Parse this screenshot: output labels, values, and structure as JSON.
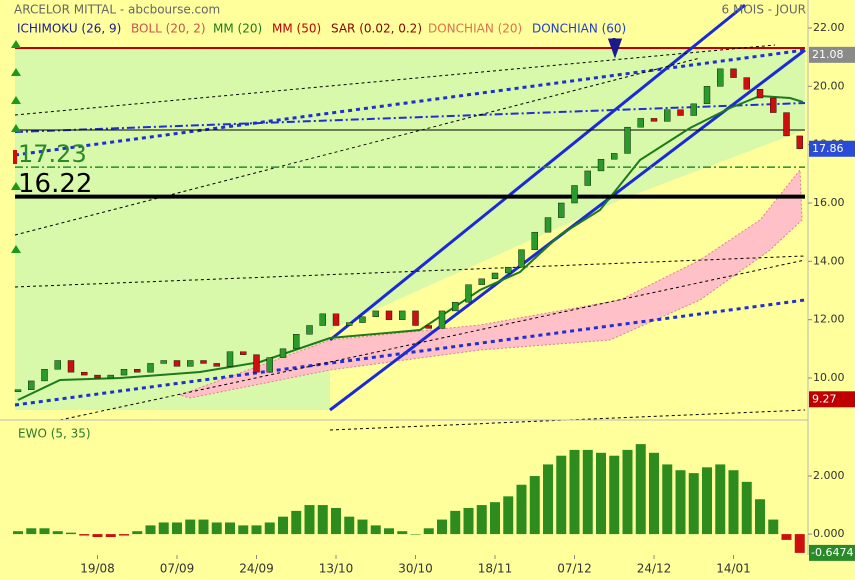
{
  "chart_data": [
    {
      "type": "candlestick",
      "title": "ARCELOR MITTAL - abcbourse.com",
      "period": "6 MOIS - JOUR",
      "indicators": [
        {
          "name": "ICHIMOKU (26, 9)",
          "color": "#1a1a8c"
        },
        {
          "name": "BOLL (20, 2)",
          "color": "#d05050"
        },
        {
          "name": "MM (20)",
          "color": "#1e7a1e"
        },
        {
          "name": "MM (50)",
          "color": "#c00000"
        },
        {
          "name": "SAR (0.02, 0.2)",
          "color": "#8b0000"
        },
        {
          "name": "DONCHIAN (20)",
          "color": "#e07050"
        },
        {
          "name": "DONCHIAN (60)",
          "color": "#2040d0"
        }
      ],
      "categories": [
        null,
        null,
        null,
        null,
        null,
        null,
        "19/08",
        null,
        null,
        null,
        null,
        null,
        "07/09",
        null,
        null,
        null,
        null,
        null,
        "24/09",
        null,
        null,
        null,
        null,
        null,
        "13/10",
        null,
        null,
        null,
        null,
        null,
        "30/10",
        null,
        null,
        null,
        null,
        null,
        "18/11",
        null,
        null,
        null,
        null,
        null,
        "07/12",
        null,
        null,
        null,
        null,
        null,
        "24/12",
        null,
        null,
        null,
        null,
        null,
        "14/01",
        null,
        null,
        null,
        null,
        null
      ],
      "values": [
        9.6,
        9.9,
        10.3,
        10.6,
        10.2,
        10.1,
        10.0,
        10.1,
        10.3,
        10.2,
        10.5,
        10.6,
        10.4,
        10.6,
        10.5,
        10.4,
        10.9,
        10.8,
        10.2,
        10.7,
        11.0,
        11.5,
        11.8,
        12.2,
        11.8,
        11.9,
        12.1,
        12.3,
        12.0,
        12.3,
        11.8,
        11.7,
        12.3,
        12.6,
        13.2,
        13.4,
        13.6,
        13.8,
        14.4,
        15.0,
        15.5,
        16.0,
        16.6,
        17.1,
        17.5,
        17.7,
        18.6,
        18.9,
        18.8,
        19.2,
        19.0,
        19.4,
        20.0,
        20.6,
        20.3,
        19.9,
        19.6,
        19.1,
        18.3,
        17.86
      ],
      "up_color": "#2a9a2a",
      "down_color": "#cc1010",
      "ylim": [
        8.56,
        22.96
      ],
      "yticks": [
        {
          "value": 10,
          "label": "10.00"
        },
        {
          "value": 12,
          "label": "12.00"
        },
        {
          "value": 14,
          "label": "14.00"
        },
        {
          "value": 16,
          "label": "16.00"
        },
        {
          "value": 18,
          "label": "18.00"
        },
        {
          "value": 20,
          "label": "20.00"
        },
        {
          "value": 22,
          "label": "22.00"
        }
      ],
      "levels": [
        {
          "value": 17.23,
          "label": "17.23",
          "color": "#2a8a2a"
        },
        {
          "value": 16.22,
          "label": "16.22",
          "color": "#000000"
        }
      ],
      "tags": [
        {
          "value": 21.08,
          "label": "21.08",
          "color": "#8a8a8a"
        },
        {
          "value": 17.86,
          "label": "17.86",
          "color": "#2a4ad8"
        },
        {
          "value": 9.27,
          "label": "9.27",
          "color": "#c00000"
        }
      ]
    },
    {
      "type": "bar",
      "title": "EWO (5, 35)",
      "values": [
        0.1,
        0.2,
        0.2,
        0.1,
        0.05,
        -0.05,
        -0.1,
        -0.1,
        -0.05,
        0.1,
        0.3,
        0.4,
        0.4,
        0.5,
        0.5,
        0.4,
        0.4,
        0.3,
        0.3,
        0.4,
        0.6,
        0.8,
        1.0,
        1.0,
        0.9,
        0.6,
        0.5,
        0.3,
        0.2,
        0.1,
        0.0,
        0.2,
        0.5,
        0.8,
        0.9,
        1.0,
        1.1,
        1.3,
        1.7,
        2.0,
        2.4,
        2.7,
        2.9,
        2.9,
        2.8,
        2.7,
        2.9,
        3.1,
        2.8,
        2.4,
        2.2,
        2.1,
        2.3,
        2.4,
        2.2,
        1.8,
        1.2,
        0.5,
        -0.2,
        -0.6474
      ],
      "color": "#2e8b1e",
      "negative_color": "#cc1010",
      "ylim": [
        -0.72,
        3.93
      ],
      "yticks": [
        {
          "value": 0,
          "label": "0.000"
        },
        {
          "value": 2,
          "label": "2.000"
        }
      ],
      "last_tag": {
        "value": -0.6474,
        "label": "-0.6474",
        "color": "#2a8a2a"
      }
    }
  ]
}
